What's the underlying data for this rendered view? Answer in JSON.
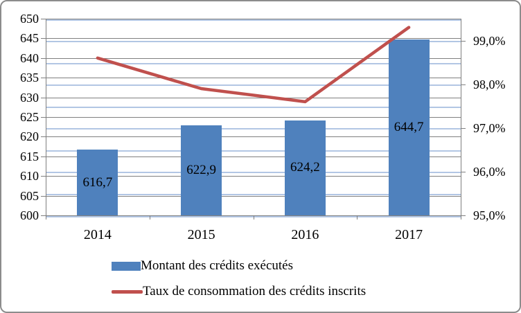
{
  "chart_data": {
    "type": "combo",
    "categories": [
      "2014",
      "2015",
      "2016",
      "2017"
    ],
    "series": [
      {
        "name": "Montant des crédits exécutés",
        "type": "bar",
        "axis": "left",
        "values": [
          616.7,
          622.9,
          624.2,
          644.7
        ],
        "value_labels": [
          "616,7",
          "622,9",
          "624,2",
          "644,7"
        ],
        "color": "#4f81bd"
      },
      {
        "name": "Taux de consommation des crédits inscrits",
        "type": "line",
        "axis": "right",
        "values": [
          98.6,
          97.9,
          97.6,
          99.3
        ],
        "color": "#c0504d"
      }
    ],
    "left_axis": {
      "min": 600,
      "max": 650,
      "major_step": 5,
      "tick_labels": [
        "600",
        "605",
        "610",
        "615",
        "620",
        "625",
        "630",
        "635",
        "640",
        "645",
        "650"
      ]
    },
    "right_axis": {
      "min": 95.0,
      "max": 99.5,
      "major_step": 1.0,
      "minor_step": 0.5,
      "tick_labels": [
        "95,0%",
        "96,0%",
        "97,0%",
        "98,0%",
        "99,0%"
      ]
    },
    "grid": {
      "major_color": "#7f7f7f",
      "minor_color": "#b2c6e4",
      "major_on": true,
      "minor_on": true
    },
    "legend_position": "bottom",
    "title": ""
  }
}
